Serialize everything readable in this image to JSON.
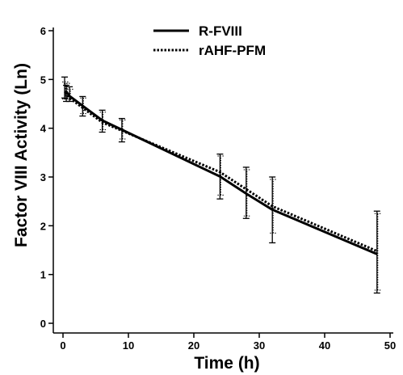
{
  "chart_data": {
    "type": "line",
    "title": "",
    "xlabel": "Time (h)",
    "ylabel": "Factor VIII Activity  (Ln)",
    "xlim": [
      0,
      50
    ],
    "ylim": [
      0,
      6
    ],
    "xticks": [
      0,
      10,
      20,
      30,
      40,
      50
    ],
    "yticks": [
      0,
      1,
      2,
      3,
      4,
      5,
      6
    ],
    "grid": false,
    "legend_position": "top",
    "series": [
      {
        "name": "R-FVIII",
        "style": "solid",
        "color": "#000000",
        "x": [
          0.25,
          0.5,
          1,
          3,
          6,
          9,
          24,
          28,
          32,
          48
        ],
        "y": [
          4.72,
          4.75,
          4.66,
          4.46,
          4.16,
          3.97,
          3.01,
          2.66,
          2.33,
          1.42
        ],
        "error_low": [
          4.62,
          4.55,
          4.55,
          4.25,
          3.92,
          3.72,
          2.55,
          2.15,
          1.65,
          0.62
        ],
        "error_high": [
          5.05,
          4.88,
          4.85,
          4.65,
          4.37,
          4.2,
          3.47,
          3.2,
          3.0,
          2.3
        ]
      },
      {
        "name": "rAHF-PFM",
        "style": "dotted",
        "color": "#000000",
        "x": [
          0.25,
          0.5,
          1,
          3,
          6,
          9,
          24,
          28,
          32,
          48
        ],
        "y": [
          4.72,
          4.7,
          4.62,
          4.42,
          4.12,
          3.95,
          3.1,
          2.75,
          2.4,
          1.48
        ],
        "error_low": [
          4.6,
          4.6,
          4.6,
          4.3,
          3.97,
          3.78,
          2.63,
          2.2,
          1.85,
          0.68
        ],
        "error_high": [
          4.95,
          4.92,
          4.8,
          4.62,
          4.33,
          4.17,
          3.43,
          3.15,
          2.95,
          2.25
        ]
      }
    ]
  }
}
